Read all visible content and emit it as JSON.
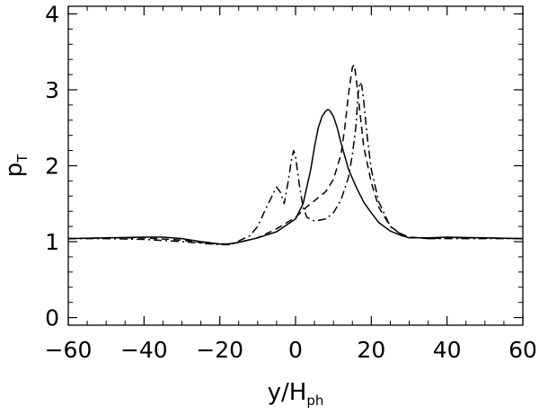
{
  "chart_data": {
    "type": "line",
    "title": "",
    "xlabel": {
      "main": "y/H",
      "sub": "ph"
    },
    "ylabel": {
      "main": "p",
      "sub": "T"
    },
    "xlim": [
      -60,
      60
    ],
    "ylim": [
      -0.1,
      4.1
    ],
    "xticks": [
      -60,
      -40,
      -20,
      0,
      20,
      40,
      60
    ],
    "xtick_labels": [
      "−60",
      "−40",
      "−20",
      "0",
      "20",
      "40",
      "60"
    ],
    "yticks": [
      0,
      1,
      2,
      3,
      4
    ],
    "ytick_labels": [
      "0",
      "1",
      "2",
      "3",
      "4"
    ],
    "grid": false,
    "legend": "none",
    "series": [
      {
        "style": "solid",
        "color": "#000000",
        "x": [
          -60,
          -50,
          -40,
          -35,
          -30,
          -25,
          -20,
          -18,
          -15,
          -10,
          -5,
          0,
          2,
          4,
          5,
          6,
          7,
          8,
          8.5,
          9,
          10,
          11,
          12,
          14,
          16,
          18,
          20,
          22,
          25,
          28,
          30,
          35,
          40,
          50,
          60
        ],
        "y": [
          1.04,
          1.05,
          1.06,
          1.06,
          1.04,
          1.0,
          0.97,
          0.97,
          0.99,
          1.05,
          1.13,
          1.3,
          1.5,
          1.95,
          2.25,
          2.5,
          2.65,
          2.72,
          2.74,
          2.73,
          2.65,
          2.5,
          2.3,
          1.95,
          1.72,
          1.52,
          1.38,
          1.25,
          1.14,
          1.08,
          1.05,
          1.05,
          1.06,
          1.05,
          1.04
        ]
      },
      {
        "style": "dashed",
        "color": "#000000",
        "x": [
          -60,
          -50,
          -40,
          -30,
          -25,
          -20,
          -17,
          -10,
          -5,
          0,
          3,
          5,
          8,
          10,
          12,
          13,
          14,
          15,
          15.5,
          16,
          17,
          18,
          20,
          22,
          25,
          28,
          30,
          35,
          40,
          50,
          60
        ],
        "y": [
          1.04,
          1.05,
          1.05,
          1.02,
          0.99,
          0.97,
          0.97,
          1.05,
          1.17,
          1.32,
          1.46,
          1.54,
          1.66,
          1.82,
          2.15,
          2.5,
          2.95,
          3.3,
          3.33,
          3.15,
          2.7,
          2.25,
          1.78,
          1.45,
          1.2,
          1.1,
          1.06,
          1.04,
          1.05,
          1.05,
          1.04
        ]
      },
      {
        "style": "dash-dot",
        "color": "#000000",
        "x": [
          -60,
          -50,
          -40,
          -30,
          -25,
          -20,
          -17,
          -12,
          -10,
          -8,
          -6,
          -5,
          -4,
          -3,
          -2,
          -1,
          -0.5,
          0,
          1,
          2,
          3,
          5,
          8,
          10,
          12,
          14,
          15,
          16,
          16.5,
          17,
          17.5,
          18,
          19,
          20,
          22,
          25,
          28,
          30,
          35,
          40,
          50,
          60
        ],
        "y": [
          1.04,
          1.04,
          1.03,
          1.0,
          0.98,
          0.96,
          0.96,
          1.08,
          1.2,
          1.42,
          1.62,
          1.72,
          1.65,
          1.5,
          1.78,
          2.1,
          2.2,
          2.12,
          1.75,
          1.45,
          1.32,
          1.27,
          1.3,
          1.38,
          1.55,
          1.85,
          2.15,
          2.55,
          2.95,
          3.1,
          3.05,
          2.85,
          2.35,
          1.95,
          1.52,
          1.2,
          1.09,
          1.06,
          1.04,
          1.04,
          1.04,
          1.04
        ]
      }
    ]
  }
}
